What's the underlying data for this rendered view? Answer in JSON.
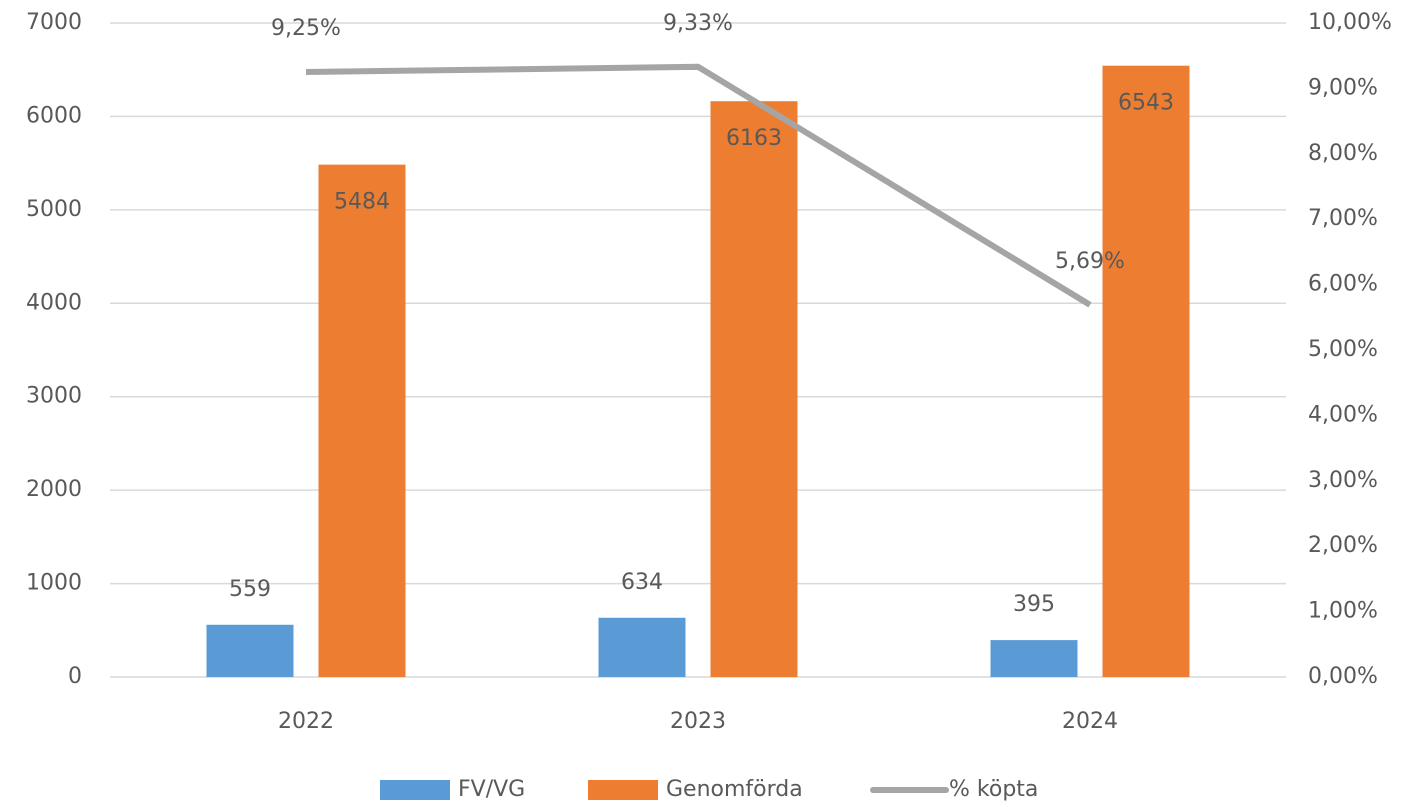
{
  "chart_data": {
    "type": "bar",
    "categories": [
      "2022",
      "2023",
      "2024"
    ],
    "series": [
      {
        "name": "FV/VG",
        "type": "bar",
        "color": "#5b9bd5",
        "values": [
          559,
          634,
          395
        ]
      },
      {
        "name": "Genomförda",
        "type": "bar",
        "color": "#ed7d31",
        "values": [
          5484,
          6163,
          6543
        ]
      },
      {
        "name": "% köpta",
        "type": "line",
        "axis": "y2",
        "color": "#a5a5a5",
        "values": [
          9.25,
          9.33,
          5.69
        ],
        "value_labels": [
          "9,25%",
          "9,33%",
          "5,69%"
        ]
      }
    ],
    "ylim": [
      0,
      7000
    ],
    "yticks": [
      0,
      1000,
      2000,
      3000,
      4000,
      5000,
      6000,
      7000
    ],
    "y2lim": [
      0,
      10
    ],
    "y2ticks": [
      {
        "value": 0,
        "label": "0,00%"
      },
      {
        "value": 1,
        "label": "1,00%"
      },
      {
        "value": 2,
        "label": "2,00%"
      },
      {
        "value": 3,
        "label": "3,00%"
      },
      {
        "value": 4,
        "label": "4,00%"
      },
      {
        "value": 5,
        "label": "5,00%"
      },
      {
        "value": 6,
        "label": "6,00%"
      },
      {
        "value": 7,
        "label": "7,00%"
      },
      {
        "value": 8,
        "label": "8,00%"
      },
      {
        "value": 9,
        "label": "9,00%"
      },
      {
        "value": 10,
        "label": "10,00%"
      }
    ],
    "grid": true,
    "legend": "bottom"
  }
}
